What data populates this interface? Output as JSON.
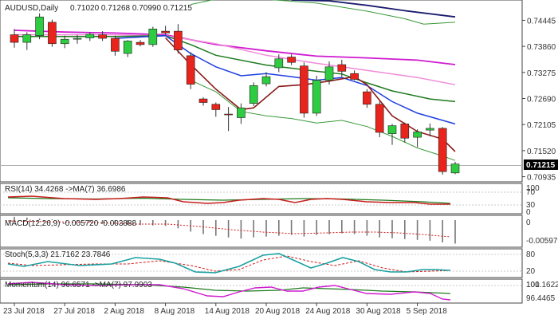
{
  "chart_data": {
    "symbol": "AUDUSD,Daily",
    "ohlc": "0.71020 0.71268 0.70990 0.71215",
    "current_price": "0.71215",
    "colors": {
      "up": "#2ecc40",
      "down": "#e8241c",
      "wick": "#333333",
      "bg": "#ffffff",
      "grid": "#c8c8c8",
      "ma_navy": "#1a1a6e",
      "ma_blue": "#1f3fe0",
      "ma_darkred": "#8b1a1a",
      "ma_green": "#1e7a1e",
      "ma_magenta": "#d01ad0",
      "ma_pink": "#f08ad8",
      "band_green": "#3a9a3a"
    },
    "price_axis": {
      "min": 0.7082,
      "max": 0.749,
      "ticks": [
        "0.74445",
        "0.73860",
        "0.73275",
        "0.72690",
        "0.72105",
        "0.71520",
        "0.70935"
      ]
    },
    "x_labels": [
      {
        "i": 0,
        "t": "23 Jul 2018"
      },
      {
        "i": 4,
        "t": "27 Jul 2018"
      },
      {
        "i": 8,
        "t": "2 Aug 2018"
      },
      {
        "i": 12,
        "t": "8 Aug 2018"
      },
      {
        "i": 16,
        "t": "14 Aug 2018"
      },
      {
        "i": 20,
        "t": "20 Aug 2018"
      },
      {
        "i": 24,
        "t": "24 Aug 2018"
      },
      {
        "i": 28,
        "t": "30 Aug 2018"
      },
      {
        "i": 32,
        "t": "5 Sep 2018"
      }
    ],
    "candles": [
      {
        "o": 0.7412,
        "h": 0.7425,
        "l": 0.7383,
        "c": 0.7395
      },
      {
        "o": 0.7395,
        "h": 0.7418,
        "l": 0.7378,
        "c": 0.7412
      },
      {
        "o": 0.741,
        "h": 0.746,
        "l": 0.7402,
        "c": 0.7452
      },
      {
        "o": 0.744,
        "h": 0.7446,
        "l": 0.7385,
        "c": 0.7392
      },
      {
        "o": 0.7392,
        "h": 0.741,
        "l": 0.7382,
        "c": 0.7402
      },
      {
        "o": 0.7402,
        "h": 0.7412,
        "l": 0.7392,
        "c": 0.7404
      },
      {
        "o": 0.7405,
        "h": 0.7418,
        "l": 0.7398,
        "c": 0.7413
      },
      {
        "o": 0.7412,
        "h": 0.742,
        "l": 0.7398,
        "c": 0.7404
      },
      {
        "o": 0.7404,
        "h": 0.741,
        "l": 0.7365,
        "c": 0.7375
      },
      {
        "o": 0.737,
        "h": 0.74,
        "l": 0.7362,
        "c": 0.7398
      },
      {
        "o": 0.7395,
        "h": 0.74,
        "l": 0.7386,
        "c": 0.739
      },
      {
        "o": 0.739,
        "h": 0.743,
        "l": 0.7385,
        "c": 0.7425
      },
      {
        "o": 0.742,
        "h": 0.7432,
        "l": 0.7412,
        "c": 0.7416
      },
      {
        "o": 0.742,
        "h": 0.7436,
        "l": 0.737,
        "c": 0.7378
      },
      {
        "o": 0.7365,
        "h": 0.7373,
        "l": 0.729,
        "c": 0.7301
      },
      {
        "o": 0.7268,
        "h": 0.7272,
        "l": 0.7253,
        "c": 0.726
      },
      {
        "o": 0.7256,
        "h": 0.726,
        "l": 0.7228,
        "c": 0.7244
      },
      {
        "o": 0.7234,
        "h": 0.725,
        "l": 0.7196,
        "c": 0.7233
      },
      {
        "o": 0.7226,
        "h": 0.7258,
        "l": 0.7212,
        "c": 0.7248
      },
      {
        "o": 0.7258,
        "h": 0.7305,
        "l": 0.7252,
        "c": 0.7298
      },
      {
        "o": 0.7302,
        "h": 0.7328,
        "l": 0.7296,
        "c": 0.7318
      },
      {
        "o": 0.7338,
        "h": 0.7368,
        "l": 0.7328,
        "c": 0.7358
      },
      {
        "o": 0.7362,
        "h": 0.7368,
        "l": 0.7344,
        "c": 0.735
      },
      {
        "o": 0.7342,
        "h": 0.735,
        "l": 0.7226,
        "c": 0.7236
      },
      {
        "o": 0.7236,
        "h": 0.732,
        "l": 0.723,
        "c": 0.731
      },
      {
        "o": 0.731,
        "h": 0.7352,
        "l": 0.73,
        "c": 0.734
      },
      {
        "o": 0.7345,
        "h": 0.7356,
        "l": 0.7318,
        "c": 0.733
      },
      {
        "o": 0.7325,
        "h": 0.7332,
        "l": 0.731,
        "c": 0.7312
      },
      {
        "o": 0.7284,
        "h": 0.729,
        "l": 0.7248,
        "c": 0.7256
      },
      {
        "o": 0.7256,
        "h": 0.7262,
        "l": 0.7182,
        "c": 0.7193
      },
      {
        "o": 0.719,
        "h": 0.7212,
        "l": 0.7165,
        "c": 0.7208
      },
      {
        "o": 0.7212,
        "h": 0.7215,
        "l": 0.717,
        "c": 0.718
      },
      {
        "o": 0.7182,
        "h": 0.72,
        "l": 0.716,
        "c": 0.7194
      },
      {
        "o": 0.7198,
        "h": 0.7213,
        "l": 0.7184,
        "c": 0.7202
      },
      {
        "o": 0.7202,
        "h": 0.7205,
        "l": 0.7098,
        "c": 0.7105
      },
      {
        "o": 0.7102,
        "h": 0.7127,
        "l": 0.7099,
        "c": 0.7122
      }
    ],
    "mas": [
      {
        "name": "ma_navy",
        "color": "#1a1a6e",
        "w": 1.8,
        "pts": [
          [
            22,
            0.749
          ],
          [
            25,
            0.7488
          ],
          [
            28,
            0.7478
          ],
          [
            31,
            0.7466
          ],
          [
            35,
            0.7452
          ]
        ]
      },
      {
        "name": "band_green_upper",
        "color": "#3a9a3a",
        "w": 1,
        "pts": [
          [
            14,
            0.748
          ],
          [
            17,
            0.7498
          ],
          [
            24,
            0.7483
          ],
          [
            28,
            0.7465
          ],
          [
            31,
            0.7448
          ],
          [
            32.5,
            0.7436
          ],
          [
            35,
            0.744
          ]
        ]
      },
      {
        "name": "ma_magenta",
        "color": "#d01ad0",
        "w": 1.8,
        "pts": [
          [
            0,
            0.7422
          ],
          [
            4,
            0.7418
          ],
          [
            8,
            0.7416
          ],
          [
            12,
            0.7412
          ],
          [
            16,
            0.739
          ],
          [
            20,
            0.7376
          ],
          [
            24,
            0.7364
          ],
          [
            28,
            0.736
          ],
          [
            32,
            0.7355
          ],
          [
            35,
            0.7345
          ]
        ]
      },
      {
        "name": "ma_pink",
        "color": "#f08ad8",
        "w": 1.5,
        "pts": [
          [
            0,
            0.7412
          ],
          [
            4,
            0.7412
          ],
          [
            8,
            0.7412
          ],
          [
            12,
            0.741
          ],
          [
            16,
            0.7392
          ],
          [
            20,
            0.7366
          ],
          [
            24,
            0.7348
          ],
          [
            28,
            0.7332
          ],
          [
            32,
            0.7316
          ],
          [
            35,
            0.73
          ]
        ]
      },
      {
        "name": "ma_green",
        "color": "#1e7a1e",
        "w": 1.5,
        "pts": [
          [
            0,
            0.7408
          ],
          [
            4,
            0.7408
          ],
          [
            8,
            0.7408
          ],
          [
            12,
            0.741
          ],
          [
            14,
            0.739
          ],
          [
            16,
            0.7366
          ],
          [
            20,
            0.7344
          ],
          [
            24,
            0.733
          ],
          [
            26,
            0.7324
          ],
          [
            28,
            0.7304
          ],
          [
            30,
            0.7286
          ],
          [
            33,
            0.7268
          ],
          [
            35,
            0.7262
          ]
        ]
      },
      {
        "name": "ma_blue",
        "color": "#1f3fe0",
        "w": 1.5,
        "pts": [
          [
            8,
            0.7404
          ],
          [
            12,
            0.741
          ],
          [
            14,
            0.737
          ],
          [
            16,
            0.734
          ],
          [
            18,
            0.732
          ],
          [
            20,
            0.7325
          ],
          [
            22,
            0.7318
          ],
          [
            24,
            0.731
          ],
          [
            26,
            0.7316
          ],
          [
            28,
            0.7298
          ],
          [
            30,
            0.7262
          ],
          [
            32,
            0.7236
          ],
          [
            35,
            0.7212
          ]
        ]
      },
      {
        "name": "ma_darkred",
        "color": "#8b1a1a",
        "w": 1.6,
        "pts": [
          [
            12,
            0.7405
          ],
          [
            14,
            0.7345
          ],
          [
            16,
            0.729
          ],
          [
            18,
            0.7244
          ],
          [
            19,
            0.7248
          ],
          [
            21,
            0.7296
          ],
          [
            23,
            0.73
          ],
          [
            25,
            0.7308
          ],
          [
            27,
            0.7318
          ],
          [
            28,
            0.73
          ],
          [
            30,
            0.723
          ],
          [
            32,
            0.7195
          ],
          [
            34,
            0.7178
          ],
          [
            35,
            0.715
          ]
        ]
      },
      {
        "name": "band_green_lower",
        "color": "#3a9a3a",
        "w": 1,
        "pts": [
          [
            14,
            0.731
          ],
          [
            16,
            0.7284
          ],
          [
            18,
            0.724
          ],
          [
            20,
            0.723
          ],
          [
            22,
            0.7224
          ],
          [
            24,
            0.7214
          ],
          [
            26,
            0.722
          ],
          [
            28,
            0.7206
          ],
          [
            30,
            0.7184
          ],
          [
            32,
            0.7158
          ],
          [
            34,
            0.714
          ],
          [
            35,
            0.713
          ]
        ]
      }
    ],
    "rsi": {
      "label": "RSI(14) 34.4268 ->MA(7) 36.6986",
      "scale_labels": [
        "100",
        "70",
        "30",
        "0"
      ]
    },
    "macd": {
      "label": "MACD(12,26,9) -0.005720 -0.003888",
      "scale_labels": [
        "0",
        "-0.005973"
      ],
      "bars": [
        0.0008,
        0.0006,
        0.0004,
        0.0002,
        0.0,
        -0.0003,
        -0.0005,
        -0.0007,
        -0.0009,
        -0.0011,
        -0.0012,
        -0.0013,
        -0.0014,
        -0.002,
        -0.0028,
        -0.0034,
        -0.0038,
        -0.0042,
        -0.0045,
        -0.0042,
        -0.004,
        -0.0038,
        -0.0036,
        -0.004,
        -0.0036,
        -0.0034,
        -0.0032,
        -0.0034,
        -0.0038,
        -0.0042,
        -0.0044,
        -0.0046,
        -0.0048,
        -0.005,
        -0.0054,
        -0.0057
      ]
    },
    "stoch": {
      "label": "Stoch(5,3,3) 21.7162 23.7846",
      "scale_labels": [
        "80",
        "20"
      ]
    },
    "momentum": {
      "label": "Momentum(14) 96.6571 ->MA(7) 97.9903",
      "scale_labels": [
        "101.1622",
        "100",
        "96.4465"
      ]
    }
  }
}
